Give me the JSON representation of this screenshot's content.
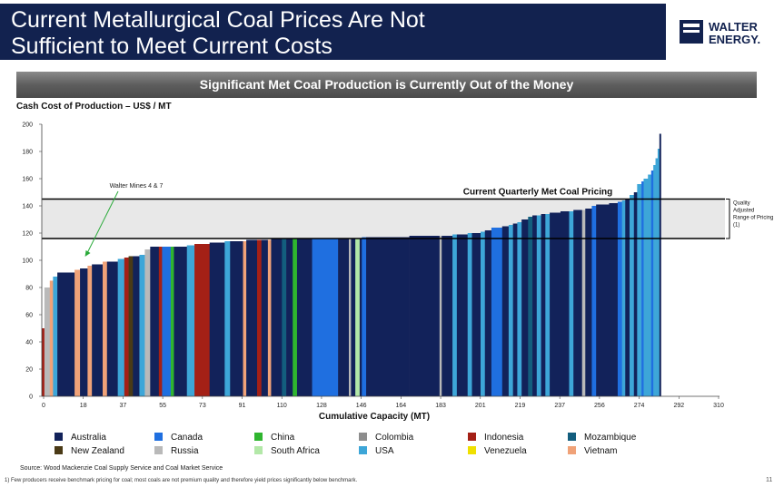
{
  "slide": {
    "title_line1": "Current Metallurgical Coal Prices Are Not",
    "title_line2": "Sufficient to Meet Current Costs",
    "logo_line1": "WALTER",
    "logo_line2": "ENERGY.",
    "banner": "Significant Met Coal Production is Currently Out of the Money",
    "source": "Source: Wood Mackenzie Coal Supply Service and Coal Market Service",
    "footnote": "1) Few producers receive benchmark pricing for coal; most coals are not premium quality and therefore yield prices significantly below benchmark.",
    "page_number": "11"
  },
  "colors": {
    "title_bg": "#12224f",
    "band": "#e8e8e8"
  },
  "chart_data": {
    "type": "bar",
    "subtype": "cost-curve",
    "ylabel": "Cash Cost of Production – US$ / MT",
    "xlabel": "Cumulative Capacity (MT)",
    "ylim": [
      0,
      200
    ],
    "xlim": [
      0,
      313
    ],
    "y_ticks": [
      0,
      20,
      40,
      60,
      80,
      100,
      120,
      140,
      160,
      180,
      200
    ],
    "x_ticks": [
      "0",
      "18",
      "37",
      "55",
      "73",
      "91",
      "110",
      "128",
      "146",
      "164",
      "183",
      "201",
      "219",
      "237",
      "256",
      "274",
      "292",
      "310"
    ],
    "price_band": {
      "low": 116,
      "high": 145,
      "label": "Current Quarterly Met Coal Pricing",
      "side_note": "Quality Adjusted Range of Pricing (1)"
    },
    "annotation": {
      "label": "Walter Mines 4 & 7",
      "x": 20,
      "y": 100
    },
    "countries": {
      "AU": {
        "name": "Australia",
        "color": "#12225a"
      },
      "CA": {
        "name": "Canada",
        "color": "#1f6fe0"
      },
      "CN": {
        "name": "China",
        "color": "#2fb52f"
      },
      "CO": {
        "name": "Colombia",
        "color": "#8d8d8d"
      },
      "ID": {
        "name": "Indonesia",
        "color": "#a42016"
      },
      "MZ": {
        "name": "Mozambique",
        "color": "#135e7e"
      },
      "NZ": {
        "name": "New Zealand",
        "color": "#4a3a16"
      },
      "RU": {
        "name": "Russia",
        "color": "#b9b9b9"
      },
      "ZA": {
        "name": "South Africa",
        "color": "#b3e8a8"
      },
      "US": {
        "name": "USA",
        "color": "#3da6d8"
      },
      "VE": {
        "name": "Venezuela",
        "color": "#f0e000"
      },
      "VN": {
        "name": "Vietnam",
        "color": "#f0a278"
      }
    },
    "legend_order": [
      "AU",
      "CA",
      "CN",
      "CO",
      "ID",
      "MZ",
      "NZ",
      "RU",
      "ZA",
      "US",
      "VE",
      "VN"
    ],
    "bars": [
      {
        "c": "ID",
        "w": 1.2,
        "v": 50
      },
      {
        "c": "RU",
        "w": 2.5,
        "v": 80
      },
      {
        "c": "VN",
        "w": 1.5,
        "v": 85
      },
      {
        "c": "US",
        "w": 2.0,
        "v": 88
      },
      {
        "c": "AU",
        "w": 8.0,
        "v": 91
      },
      {
        "c": "VN",
        "w": 2.5,
        "v": 93
      },
      {
        "c": "AU",
        "w": 3.5,
        "v": 94
      },
      {
        "c": "VN",
        "w": 2.0,
        "v": 96
      },
      {
        "c": "AU",
        "w": 5.0,
        "v": 97
      },
      {
        "c": "VN",
        "w": 2.0,
        "v": 99
      },
      {
        "c": "AU",
        "w": 5.0,
        "v": 99
      },
      {
        "c": "US",
        "w": 3.0,
        "v": 101
      },
      {
        "c": "ID",
        "w": 2.0,
        "v": 102
      },
      {
        "c": "NZ",
        "w": 2.0,
        "v": 103
      },
      {
        "c": "AU",
        "w": 3.0,
        "v": 103
      },
      {
        "c": "US",
        "w": 2.5,
        "v": 104
      },
      {
        "c": "RU",
        "w": 2.5,
        "v": 108
      },
      {
        "c": "AU",
        "w": 4.0,
        "v": 110
      },
      {
        "c": "ID",
        "w": 1.5,
        "v": 110
      },
      {
        "c": "CA",
        "w": 4.0,
        "v": 110
      },
      {
        "c": "CN",
        "w": 1.5,
        "v": 110
      },
      {
        "c": "AU",
        "w": 6.0,
        "v": 110
      },
      {
        "c": "US",
        "w": 3.5,
        "v": 111
      },
      {
        "c": "ID",
        "w": 7.0,
        "v": 112
      },
      {
        "c": "AU",
        "w": 7.0,
        "v": 113
      },
      {
        "c": "US",
        "w": 2.5,
        "v": 114
      },
      {
        "c": "AU",
        "w": 6.0,
        "v": 114
      },
      {
        "c": "VN",
        "w": 1.5,
        "v": 114
      },
      {
        "c": "AU",
        "w": 5.0,
        "v": 115
      },
      {
        "c": "ID",
        "w": 2.0,
        "v": 115
      },
      {
        "c": "AU",
        "w": 3.0,
        "v": 115
      },
      {
        "c": "VN",
        "w": 1.5,
        "v": 115
      },
      {
        "c": "AU",
        "w": 5.0,
        "v": 116
      },
      {
        "c": "MZ",
        "w": 2.0,
        "v": 116
      },
      {
        "c": "AU",
        "w": 3.0,
        "v": 116
      },
      {
        "c": "CN",
        "w": 2.0,
        "v": 116
      },
      {
        "c": "AU",
        "w": 7.0,
        "v": 116
      },
      {
        "c": "CA",
        "w": 12.0,
        "v": 116
      },
      {
        "c": "AU",
        "w": 5.0,
        "v": 116
      },
      {
        "c": "RU",
        "w": 1.0,
        "v": 116
      },
      {
        "c": "AU",
        "w": 2.0,
        "v": 116
      },
      {
        "c": "ZA",
        "w": 2.0,
        "v": 116
      },
      {
        "c": "AU",
        "w": 1.0,
        "v": 116
      },
      {
        "c": "CA",
        "w": 2.0,
        "v": 117
      },
      {
        "c": "AU",
        "w": 20.0,
        "v": 117
      },
      {
        "c": "AU",
        "w": 14.0,
        "v": 118
      },
      {
        "c": "RU",
        "w": 1.0,
        "v": 118
      },
      {
        "c": "AU",
        "w": 5.0,
        "v": 118
      },
      {
        "c": "US",
        "w": 2.0,
        "v": 119
      },
      {
        "c": "AU",
        "w": 5.0,
        "v": 119
      },
      {
        "c": "US",
        "w": 2.0,
        "v": 120
      },
      {
        "c": "AU",
        "w": 4.0,
        "v": 120
      },
      {
        "c": "US",
        "w": 2.0,
        "v": 121
      },
      {
        "c": "AU",
        "w": 3.0,
        "v": 122
      },
      {
        "c": "CA",
        "w": 5.0,
        "v": 124
      },
      {
        "c": "AU",
        "w": 3.0,
        "v": 125
      },
      {
        "c": "US",
        "w": 2.0,
        "v": 126
      },
      {
        "c": "AU",
        "w": 2.0,
        "v": 127
      },
      {
        "c": "US",
        "w": 2.0,
        "v": 128
      },
      {
        "c": "AU",
        "w": 3.0,
        "v": 130
      },
      {
        "c": "MZ",
        "w": 2.0,
        "v": 132
      },
      {
        "c": "AU",
        "w": 2.0,
        "v": 133
      },
      {
        "c": "US",
        "w": 2.0,
        "v": 133
      },
      {
        "c": "AU",
        "w": 2.0,
        "v": 134
      },
      {
        "c": "US",
        "w": 2.0,
        "v": 134
      },
      {
        "c": "AU",
        "w": 5.0,
        "v": 135
      },
      {
        "c": "AU",
        "w": 4.0,
        "v": 136
      },
      {
        "c": "US",
        "w": 2.0,
        "v": 136
      },
      {
        "c": "AU",
        "w": 4.0,
        "v": 137
      },
      {
        "c": "RU",
        "w": 1.5,
        "v": 137
      },
      {
        "c": "AU",
        "w": 3.0,
        "v": 138
      },
      {
        "c": "CA",
        "w": 2.0,
        "v": 140
      },
      {
        "c": "AU",
        "w": 6.0,
        "v": 141
      },
      {
        "c": "AU",
        "w": 4.0,
        "v": 142
      },
      {
        "c": "CA",
        "w": 2.0,
        "v": 143
      },
      {
        "c": "US",
        "w": 1.5,
        "v": 144
      },
      {
        "c": "AU",
        "w": 2.0,
        "v": 145
      },
      {
        "c": "US",
        "w": 2.0,
        "v": 148
      },
      {
        "c": "AU",
        "w": 1.5,
        "v": 150
      },
      {
        "c": "US",
        "w": 2.0,
        "v": 156
      },
      {
        "c": "CA",
        "w": 1.0,
        "v": 158
      },
      {
        "c": "US",
        "w": 2.0,
        "v": 160
      },
      {
        "c": "US",
        "w": 1.5,
        "v": 163
      },
      {
        "c": "CA",
        "w": 1.0,
        "v": 166
      },
      {
        "c": "US",
        "w": 1.0,
        "v": 170
      },
      {
        "c": "US",
        "w": 1.0,
        "v": 175
      },
      {
        "c": "US",
        "w": 0.8,
        "v": 182
      },
      {
        "c": "AU",
        "w": 0.7,
        "v": 193
      }
    ]
  }
}
